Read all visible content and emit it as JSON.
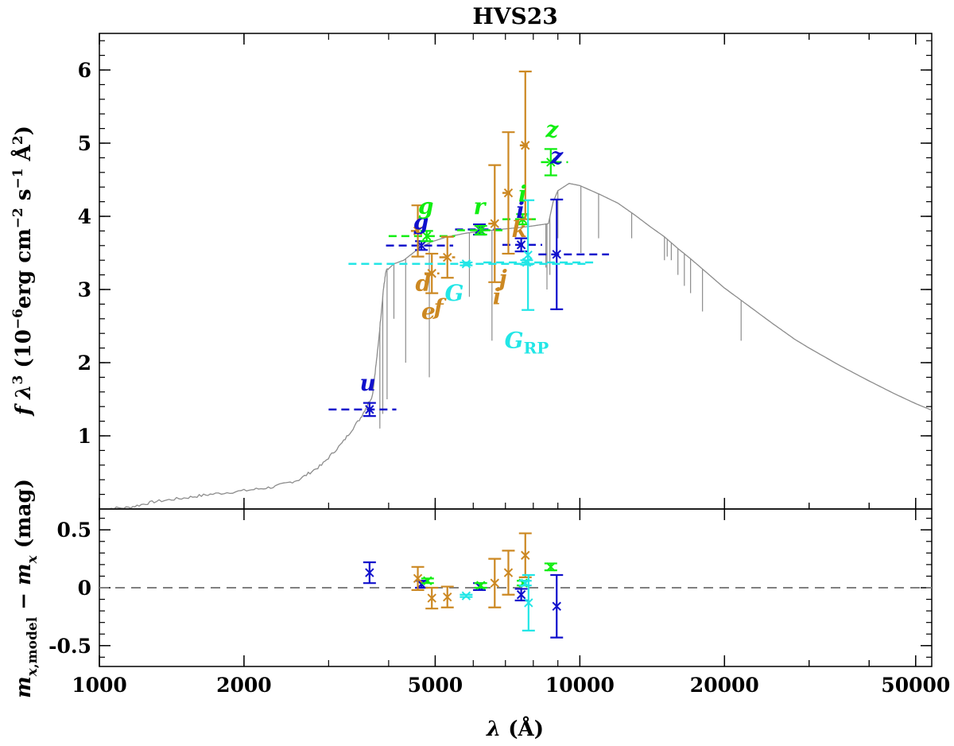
{
  "chart_data": {
    "type": "scatter",
    "title": "HVS23",
    "colors": {
      "model": "#8c8c8c",
      "blue": "#1010cc",
      "green": "#11ee11",
      "orange": "#cc8822",
      "cyan": "#22e6e6",
      "axis": "#000000",
      "zero": "#808080"
    },
    "xaxis": {
      "scale": "log",
      "range": [
        1000,
        54000
      ],
      "ticks": [
        1000,
        2000,
        5000,
        10000,
        20000,
        50000
      ],
      "tick_labels": [
        "1000",
        "2000",
        "5000",
        "10000",
        "20000",
        "50000"
      ],
      "label": "λ (Å)"
    },
    "top_panel": {
      "ylabel": "f λ³ (10⁻⁶erg cm⁻² s⁻¹ Å²)",
      "ylim": [
        0,
        6.5
      ],
      "ticks": [
        1,
        2,
        3,
        4,
        5,
        6
      ],
      "tick_labels": [
        "1",
        "2",
        "3",
        "4",
        "5",
        "6"
      ],
      "model_spectrum": [
        [
          1000,
          0.0
        ],
        [
          1150,
          0.02
        ],
        [
          1300,
          0.1
        ],
        [
          1500,
          0.15
        ],
        [
          1700,
          0.2
        ],
        [
          2000,
          0.25
        ],
        [
          2300,
          0.3
        ],
        [
          2600,
          0.4
        ],
        [
          2900,
          0.6
        ],
        [
          3200,
          0.9
        ],
        [
          3500,
          1.25
        ],
        [
          3700,
          1.55
        ],
        [
          3800,
          2.2
        ],
        [
          3900,
          3.0
        ],
        [
          3950,
          3.25
        ],
        [
          4100,
          3.35
        ],
        [
          4300,
          3.4
        ],
        [
          4600,
          3.55
        ],
        [
          4900,
          3.65
        ],
        [
          5300,
          3.72
        ],
        [
          5800,
          3.77
        ],
        [
          6300,
          3.8
        ],
        [
          6800,
          3.82
        ],
        [
          7300,
          3.84
        ],
        [
          7800,
          3.86
        ],
        [
          8200,
          3.88
        ],
        [
          8600,
          3.9
        ],
        [
          8800,
          4.2
        ],
        [
          9000,
          4.35
        ],
        [
          9500,
          4.45
        ],
        [
          10000,
          4.42
        ],
        [
          11000,
          4.3
        ],
        [
          12000,
          4.18
        ],
        [
          13000,
          4.02
        ],
        [
          14000,
          3.86
        ],
        [
          15000,
          3.72
        ],
        [
          16000,
          3.56
        ],
        [
          17000,
          3.42
        ],
        [
          18000,
          3.28
        ],
        [
          20000,
          3.02
        ],
        [
          22000,
          2.82
        ],
        [
          25000,
          2.55
        ],
        [
          28000,
          2.32
        ],
        [
          30000,
          2.2
        ],
        [
          35000,
          1.95
        ],
        [
          40000,
          1.75
        ],
        [
          45000,
          1.58
        ],
        [
          50000,
          1.44
        ],
        [
          54000,
          1.35
        ]
      ],
      "absorption_lines": [
        [
          3835,
          1.1
        ],
        [
          3889,
          1.3
        ],
        [
          3970,
          1.5
        ],
        [
          4102,
          2.6
        ],
        [
          4340,
          2.0
        ],
        [
          4861,
          1.8
        ],
        [
          5890,
          2.9
        ],
        [
          6563,
          2.3
        ],
        [
          8498,
          3.3
        ],
        [
          8542,
          3.0
        ],
        [
          8662,
          3.2
        ],
        [
          9000,
          3.7
        ],
        [
          10050,
          3.5
        ],
        [
          10940,
          3.7
        ],
        [
          12820,
          3.7
        ],
        [
          15000,
          3.4
        ],
        [
          15200,
          3.45
        ],
        [
          15500,
          3.4
        ],
        [
          16000,
          3.2
        ],
        [
          16500,
          3.05
        ],
        [
          17000,
          2.95
        ],
        [
          18000,
          2.7
        ],
        [
          21660,
          2.3
        ]
      ],
      "photometry": [
        {
          "color": "blue",
          "x": 3650,
          "xerr_lo": 3000,
          "xerr_hi": 4150,
          "y": 1.36,
          "yerr": 0.09
        },
        {
          "color": "blue",
          "x": 4680,
          "xerr_lo": 3950,
          "xerr_hi": 5450,
          "y": 3.6,
          "yerr": 0.06
        },
        {
          "color": "blue",
          "x": 6180,
          "xerr_lo": 5500,
          "xerr_hi": 6900,
          "y": 3.82,
          "yerr": 0.07
        },
        {
          "color": "blue",
          "x": 7550,
          "xerr_lo": 6900,
          "xerr_hi": 8350,
          "y": 3.61,
          "yerr": 0.09
        },
        {
          "color": "blue",
          "x": 8950,
          "xerr_lo": 8200,
          "xerr_hi": 11500,
          "y": 3.48,
          "yerr": 0.75
        },
        {
          "color": "green",
          "x": 4800,
          "xerr_lo": 4000,
          "xerr_hi": 5500,
          "y": 3.73,
          "yerr": 0.07
        },
        {
          "color": "green",
          "x": 6220,
          "xerr_lo": 5550,
          "xerr_hi": 6900,
          "y": 3.81,
          "yerr": 0.06
        },
        {
          "color": "green",
          "x": 7600,
          "xerr_lo": 6900,
          "xerr_hi": 8250,
          "y": 3.96,
          "yerr": 0.07
        },
        {
          "color": "green",
          "x": 8700,
          "xerr_lo": 8300,
          "xerr_hi": 9450,
          "y": 4.74,
          "yerr": 0.18
        },
        {
          "color": "orange",
          "x": 4600,
          "xerr_lo": 4450,
          "xerr_hi": 4750,
          "y": 3.8,
          "yerr": 0.35
        },
        {
          "color": "orange",
          "x": 4920,
          "xerr_lo": 4750,
          "xerr_hi": 5100,
          "y": 3.22,
          "yerr": 0.27
        },
        {
          "color": "orange",
          "x": 5300,
          "xerr_lo": 5100,
          "xerr_hi": 5500,
          "y": 3.44,
          "yerr": 0.28
        },
        {
          "color": "orange",
          "x": 6650,
          "xerr_lo": 6450,
          "xerr_hi": 6850,
          "y": 3.9,
          "yerr": 0.8
        },
        {
          "color": "orange",
          "x": 7100,
          "xerr_lo": 6900,
          "xerr_hi": 7300,
          "y": 4.32,
          "yerr": 0.83
        },
        {
          "color": "orange",
          "x": 7700,
          "xerr_lo": 7500,
          "xerr_hi": 7900,
          "y": 4.97,
          "yerr": 1.01
        },
        {
          "color": "cyan",
          "x": 5800,
          "xerr_lo": 3300,
          "xerr_hi": 10500,
          "y": 3.35,
          "yerr": 0.02
        },
        {
          "color": "cyan",
          "x": 7750,
          "xerr_lo": 6300,
          "xerr_hi": 10900,
          "y": 3.37,
          "yerr": 0.03
        },
        {
          "color": "cyan",
          "x": 7800,
          "xerr_lo": 7800,
          "xerr_hi": 7800,
          "y": 3.47,
          "yerr": 0.75
        }
      ],
      "filter_labels": [
        {
          "text": "u",
          "color": "blue",
          "x": 3620,
          "y": 1.62
        },
        {
          "text": "g",
          "color": "blue",
          "x": 4670,
          "y": 3.82
        },
        {
          "text": "g",
          "color": "green",
          "x": 4780,
          "y": 4.03
        },
        {
          "text": "r",
          "color": "green",
          "x": 6180,
          "y": 4.03
        },
        {
          "text": "i",
          "color": "blue",
          "x": 7520,
          "y": 3.98
        },
        {
          "text": "i",
          "color": "green",
          "x": 7600,
          "y": 4.2
        },
        {
          "text": "z",
          "color": "green",
          "x": 8750,
          "y": 5.08
        },
        {
          "text": "z",
          "color": "blue",
          "x": 8950,
          "y": 4.72
        },
        {
          "text": "d",
          "color": "orange",
          "x": 4720,
          "y": 2.98
        },
        {
          "text": "e",
          "color": "orange",
          "x": 4840,
          "y": 2.6
        },
        {
          "text": "f",
          "color": "orange",
          "x": 5080,
          "y": 2.65
        },
        {
          "text": "G",
          "color": "cyan",
          "x": 5480,
          "y": 2.85
        },
        {
          "text": "i",
          "color": "orange",
          "x": 6720,
          "y": 2.8
        },
        {
          "text": "j",
          "color": "orange",
          "x": 6920,
          "y": 3.05
        },
        {
          "text": "k",
          "color": "orange",
          "x": 7480,
          "y": 3.72
        }
      ],
      "grp_label": {
        "main": "G",
        "sub": "RP",
        "color": "cyan",
        "x": 7750,
        "y": 2.2
      }
    },
    "bottom_panel": {
      "ylabel": "m_x,model − m_x (mag)",
      "ylim": [
        -0.68,
        0.68
      ],
      "ticks": [
        0.5,
        0,
        -0.5
      ],
      "tick_labels": [
        "0.5",
        "0",
        "-0.5"
      ],
      "zero_line": 0,
      "residuals": [
        {
          "color": "blue",
          "x": 3650,
          "y": 0.13,
          "yerr": 0.09
        },
        {
          "color": "blue",
          "x": 4680,
          "y": 0.03,
          "yerr": 0.03
        },
        {
          "color": "blue",
          "x": 6180,
          "y": 0.01,
          "yerr": 0.03
        },
        {
          "color": "blue",
          "x": 7550,
          "y": -0.06,
          "yerr": 0.05
        },
        {
          "color": "blue",
          "x": 8950,
          "y": -0.16,
          "yerr": 0.27
        },
        {
          "color": "green",
          "x": 4820,
          "y": 0.06,
          "yerr": 0.02
        },
        {
          "color": "green",
          "x": 6220,
          "y": 0.02,
          "yerr": 0.02
        },
        {
          "color": "green",
          "x": 7620,
          "y": 0.04,
          "yerr": 0.02
        },
        {
          "color": "green",
          "x": 8700,
          "y": 0.18,
          "yerr": 0.03
        },
        {
          "color": "orange",
          "x": 4600,
          "y": 0.08,
          "yerr": 0.1
        },
        {
          "color": "orange",
          "x": 4920,
          "y": -0.09,
          "yerr": 0.09
        },
        {
          "color": "orange",
          "x": 5300,
          "y": -0.08,
          "yerr": 0.09
        },
        {
          "color": "orange",
          "x": 6650,
          "y": 0.04,
          "yerr": 0.21
        },
        {
          "color": "orange",
          "x": 7100,
          "y": 0.13,
          "yerr": 0.19
        },
        {
          "color": "orange",
          "x": 7700,
          "y": 0.28,
          "yerr": 0.19
        },
        {
          "color": "cyan",
          "x": 5800,
          "y": -0.07,
          "yerr": 0.01
        },
        {
          "color": "cyan",
          "x": 7700,
          "y": 0.04,
          "yerr": 0.02
        },
        {
          "color": "cyan",
          "x": 7820,
          "y": -0.13,
          "yerr": 0.24
        }
      ]
    }
  }
}
